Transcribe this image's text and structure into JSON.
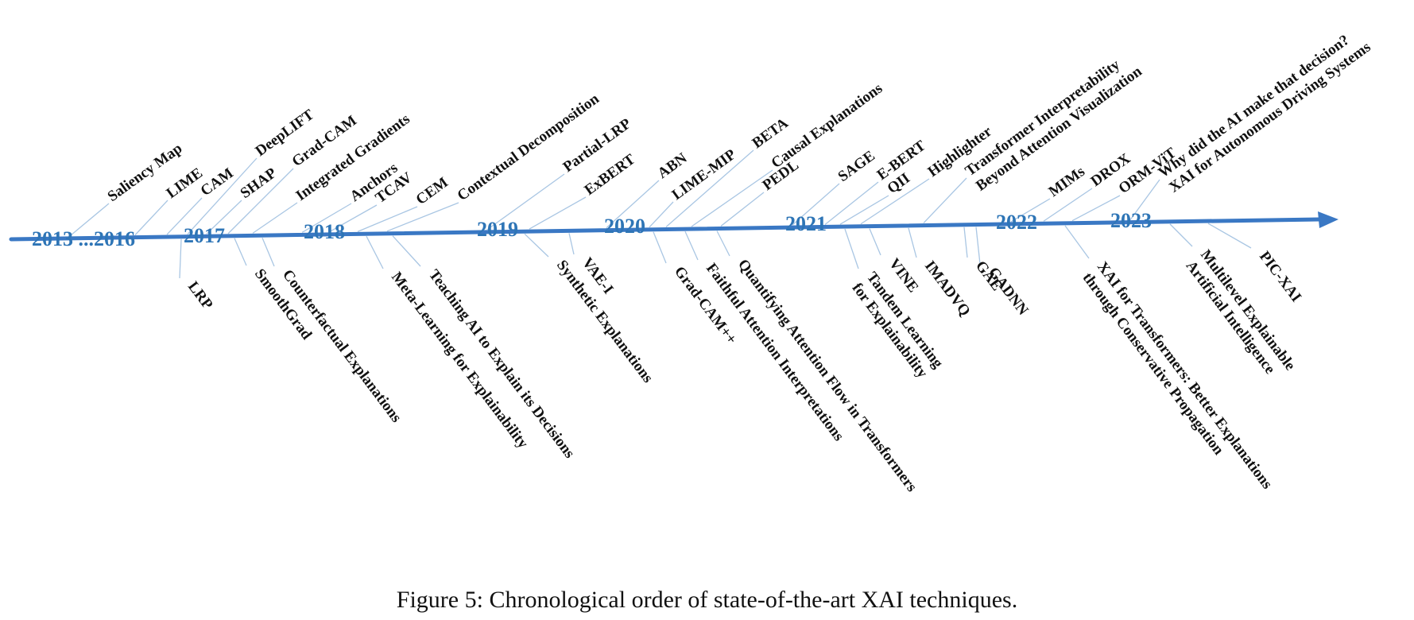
{
  "figure": {
    "caption": "Figure 5: Chronological order of state-of-the-art XAI techniques.",
    "axis_color": "#3a78c4",
    "year_color": "#2e75b6",
    "connector_color": "#a9c6e3"
  },
  "years": [
    {
      "id": "2013",
      "label": "2013 ...2016"
    },
    {
      "id": "2017",
      "label": "2017"
    },
    {
      "id": "2018",
      "label": "2018"
    },
    {
      "id": "2019",
      "label": "2019"
    },
    {
      "id": "2020",
      "label": "2020"
    },
    {
      "id": "2021",
      "label": "2021"
    },
    {
      "id": "2022",
      "label": "2022"
    },
    {
      "id": "2023",
      "label": "2023"
    }
  ],
  "techniques_above": [
    {
      "id": "saliency-map",
      "lines": [
        "Saliency Map"
      ]
    },
    {
      "id": "lime",
      "lines": [
        "LIME"
      ]
    },
    {
      "id": "cam",
      "lines": [
        "CAM"
      ]
    },
    {
      "id": "deeplift",
      "lines": [
        "DeepLIFT"
      ]
    },
    {
      "id": "shap",
      "lines": [
        "SHAP"
      ]
    },
    {
      "id": "grad-cam",
      "lines": [
        "Grad-CAM"
      ]
    },
    {
      "id": "integrated-gradients",
      "lines": [
        "Integrated Gradients"
      ]
    },
    {
      "id": "anchors",
      "lines": [
        "Anchors"
      ]
    },
    {
      "id": "tcav",
      "lines": [
        "TCAV"
      ]
    },
    {
      "id": "cem",
      "lines": [
        "CEM"
      ]
    },
    {
      "id": "contextual-decomposition",
      "lines": [
        "Contextual Decomposition"
      ]
    },
    {
      "id": "partial-lrp",
      "lines": [
        "Partial-LRP"
      ]
    },
    {
      "id": "exbert",
      "lines": [
        "ExBERT"
      ]
    },
    {
      "id": "abn",
      "lines": [
        "ABN"
      ]
    },
    {
      "id": "lime-mip",
      "lines": [
        "LIME-MIP"
      ]
    },
    {
      "id": "beta",
      "lines": [
        "BETA"
      ]
    },
    {
      "id": "causal-explanations",
      "lines": [
        "Causal Explanations"
      ]
    },
    {
      "id": "pedl",
      "lines": [
        "PEDL"
      ]
    },
    {
      "id": "sage",
      "lines": [
        "SAGE"
      ]
    },
    {
      "id": "e-bert",
      "lines": [
        "E-BERT"
      ]
    },
    {
      "id": "qii",
      "lines": [
        "QII"
      ]
    },
    {
      "id": "highlighter",
      "lines": [
        "Highlighter"
      ]
    },
    {
      "id": "transformer-interpretability",
      "lines": [
        "Transformer Interpretability",
        "Beyond Attention Visualization"
      ]
    },
    {
      "id": "mims",
      "lines": [
        "MIMs"
      ]
    },
    {
      "id": "drox",
      "lines": [
        "DROX"
      ]
    },
    {
      "id": "orm-vit",
      "lines": [
        "ORM-ViT"
      ]
    },
    {
      "id": "why-did-the-ai",
      "lines": [
        "Why did the AI make that decision?",
        "XAI for Autonomous  Driving Systems"
      ]
    }
  ],
  "techniques_below": [
    {
      "id": "lrp",
      "lines": [
        "LRP"
      ]
    },
    {
      "id": "smoothgrad",
      "lines": [
        "SmoothGrad"
      ]
    },
    {
      "id": "counterfactual-explanations",
      "lines": [
        "Counterfactual Explanations"
      ]
    },
    {
      "id": "meta-learning",
      "lines": [
        "Meta-Learning for Explainability"
      ]
    },
    {
      "id": "teaching-ai",
      "lines": [
        "Teaching AI to Explain its Decisions"
      ]
    },
    {
      "id": "synthetic-explanations",
      "lines": [
        "Synthetic Explanations"
      ]
    },
    {
      "id": "vae-i",
      "lines": [
        "VAE-I"
      ]
    },
    {
      "id": "grad-cam-pp",
      "lines": [
        "Grad-CAM++"
      ]
    },
    {
      "id": "faithful-attention",
      "lines": [
        "Faithful Attention Interpretations"
      ]
    },
    {
      "id": "quantifying-attention-flow",
      "lines": [
        "Quantifying Attention Flow in Transformers"
      ]
    },
    {
      "id": "tandem-learning",
      "lines": [
        "Tandem Learning",
        "for Explainability"
      ]
    },
    {
      "id": "vine",
      "lines": [
        "VINE"
      ]
    },
    {
      "id": "imadvq",
      "lines": [
        "IMADVQ"
      ]
    },
    {
      "id": "gae",
      "lines": [
        "GAE"
      ]
    },
    {
      "id": "gadnn",
      "lines": [
        "GADNN"
      ]
    },
    {
      "id": "xai-for-transformers",
      "lines": [
        "XAI for Transformers: Better Explanations",
        "through Conservative Propagation"
      ]
    },
    {
      "id": "multilevel-explainable-ai",
      "lines": [
        "Multilevel Explainable",
        "Artificial Intelligence"
      ]
    },
    {
      "id": "pic-xai",
      "lines": [
        "PIC-XAI"
      ]
    }
  ]
}
